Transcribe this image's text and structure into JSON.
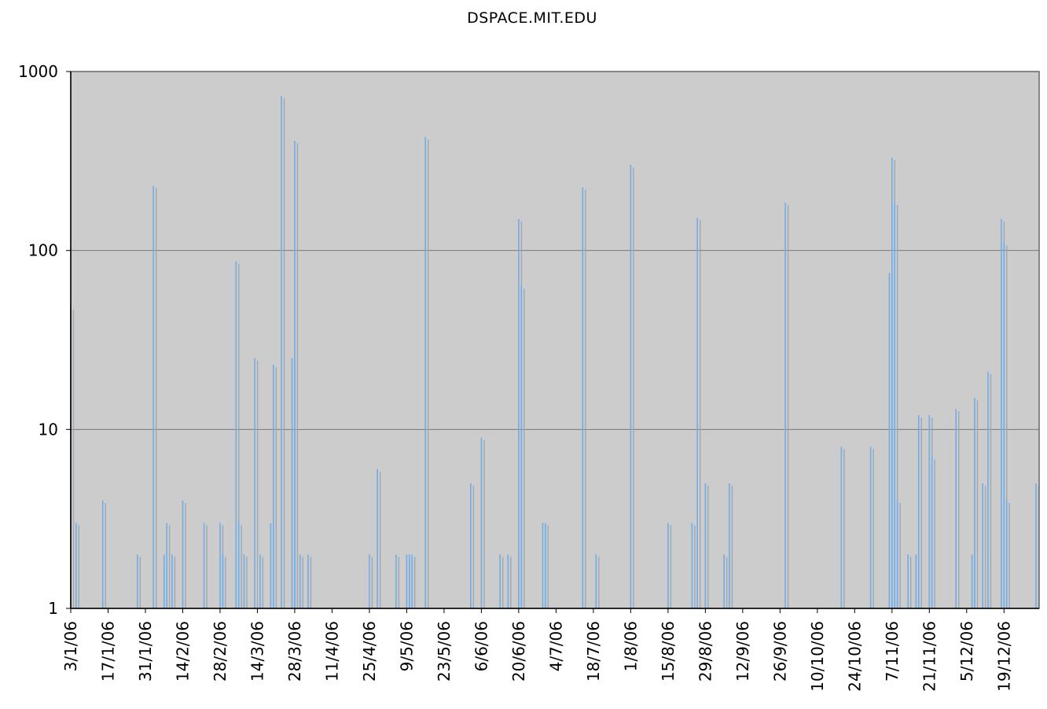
{
  "chart_data": {
    "type": "bar",
    "title": "DSPACE.MIT.EDU",
    "xlabel": "",
    "ylabel": "",
    "y_scale": "log",
    "ylim": [
      1,
      1000
    ],
    "y_ticks": [
      "1",
      "10",
      "100",
      "1000"
    ],
    "y_tick_values": [
      1,
      10,
      100,
      1000
    ],
    "x_range": [
      "2006-01-03",
      "2006-12-31"
    ],
    "x_tick_labels": [
      "3/1/06",
      "17/1/06",
      "31/1/06",
      "14/2/06",
      "28/2/06",
      "14/3/06",
      "28/3/06",
      "11/4/06",
      "25/4/06",
      "9/5/06",
      "23/5/06",
      "6/6/06",
      "20/6/06",
      "4/7/06",
      "18/7/06",
      "1/8/06",
      "15/8/06",
      "29/8/06",
      "12/9/06",
      "26/9/06",
      "10/10/06",
      "24/10/06",
      "7/11/06",
      "21/11/06",
      "5/12/06",
      "19/12/06"
    ],
    "x_tick_dates": [
      "2006-01-03",
      "2006-01-17",
      "2006-01-31",
      "2006-02-14",
      "2006-02-28",
      "2006-03-14",
      "2006-03-28",
      "2006-04-11",
      "2006-04-25",
      "2006-05-09",
      "2006-05-23",
      "2006-06-06",
      "2006-06-20",
      "2006-07-04",
      "2006-07-18",
      "2006-08-01",
      "2006-08-15",
      "2006-08-29",
      "2006-09-12",
      "2006-09-26",
      "2006-10-10",
      "2006-10-24",
      "2006-11-07",
      "2006-11-21",
      "2006-12-05",
      "2006-12-19"
    ],
    "grid": true,
    "legend": "none",
    "colors": {
      "bar": "#6aaef0",
      "bar_shadow": "#a6a6a6",
      "plot_bg": "#cccccc",
      "gridline": "#777777"
    },
    "points": [
      {
        "x": "2006-01-03",
        "y": 48
      },
      {
        "x": "2006-01-05",
        "y": 3
      },
      {
        "x": "2006-01-15",
        "y": 4
      },
      {
        "x": "2006-01-28",
        "y": 2
      },
      {
        "x": "2006-02-03",
        "y": 230
      },
      {
        "x": "2006-02-07",
        "y": 2
      },
      {
        "x": "2006-02-08",
        "y": 3
      },
      {
        "x": "2006-02-10",
        "y": 2
      },
      {
        "x": "2006-02-14",
        "y": 4
      },
      {
        "x": "2006-02-22",
        "y": 3
      },
      {
        "x": "2006-02-28",
        "y": 3
      },
      {
        "x": "2006-03-01",
        "y": 2
      },
      {
        "x": "2006-03-06",
        "y": 87
      },
      {
        "x": "2006-03-07",
        "y": 3
      },
      {
        "x": "2006-03-09",
        "y": 2
      },
      {
        "x": "2006-03-13",
        "y": 25
      },
      {
        "x": "2006-03-15",
        "y": 2
      },
      {
        "x": "2006-03-19",
        "y": 3
      },
      {
        "x": "2006-03-20",
        "y": 23
      },
      {
        "x": "2006-03-23",
        "y": 730
      },
      {
        "x": "2006-03-27",
        "y": 25
      },
      {
        "x": "2006-03-28",
        "y": 410
      },
      {
        "x": "2006-03-30",
        "y": 2
      },
      {
        "x": "2006-04-02",
        "y": 2
      },
      {
        "x": "2006-04-25",
        "y": 2
      },
      {
        "x": "2006-04-28",
        "y": 6
      },
      {
        "x": "2006-05-05",
        "y": 2
      },
      {
        "x": "2006-05-09",
        "y": 2
      },
      {
        "x": "2006-05-10",
        "y": 2
      },
      {
        "x": "2006-05-11",
        "y": 2
      },
      {
        "x": "2006-05-16",
        "y": 430
      },
      {
        "x": "2006-06-02",
        "y": 5
      },
      {
        "x": "2006-06-06",
        "y": 9
      },
      {
        "x": "2006-06-13",
        "y": 2
      },
      {
        "x": "2006-06-16",
        "y": 2
      },
      {
        "x": "2006-06-20",
        "y": 150
      },
      {
        "x": "2006-06-21",
        "y": 63
      },
      {
        "x": "2006-06-29",
        "y": 3
      },
      {
        "x": "2006-06-30",
        "y": 3
      },
      {
        "x": "2006-07-14",
        "y": 225
      },
      {
        "x": "2006-07-19",
        "y": 2
      },
      {
        "x": "2006-08-01",
        "y": 300
      },
      {
        "x": "2006-08-15",
        "y": 3
      },
      {
        "x": "2006-08-24",
        "y": 3
      },
      {
        "x": "2006-08-26",
        "y": 152
      },
      {
        "x": "2006-08-29",
        "y": 5
      },
      {
        "x": "2006-09-05",
        "y": 2
      },
      {
        "x": "2006-09-07",
        "y": 5
      },
      {
        "x": "2006-09-28",
        "y": 185
      },
      {
        "x": "2006-10-19",
        "y": 8
      },
      {
        "x": "2006-10-30",
        "y": 8
      },
      {
        "x": "2006-11-06",
        "y": 75
      },
      {
        "x": "2006-11-07",
        "y": 330
      },
      {
        "x": "2006-11-08",
        "y": 185
      },
      {
        "x": "2006-11-09",
        "y": 4
      },
      {
        "x": "2006-11-13",
        "y": 2
      },
      {
        "x": "2006-11-16",
        "y": 2
      },
      {
        "x": "2006-11-17",
        "y": 12
      },
      {
        "x": "2006-11-21",
        "y": 12
      },
      {
        "x": "2006-11-22",
        "y": 7
      },
      {
        "x": "2006-12-01",
        "y": 13
      },
      {
        "x": "2006-12-07",
        "y": 2
      },
      {
        "x": "2006-12-08",
        "y": 15
      },
      {
        "x": "2006-12-11",
        "y": 5
      },
      {
        "x": "2006-12-13",
        "y": 21
      },
      {
        "x": "2006-12-18",
        "y": 150
      },
      {
        "x": "2006-12-19",
        "y": 110
      },
      {
        "x": "2006-12-20",
        "y": 4
      },
      {
        "x": "2006-12-31",
        "y": 5
      }
    ]
  }
}
